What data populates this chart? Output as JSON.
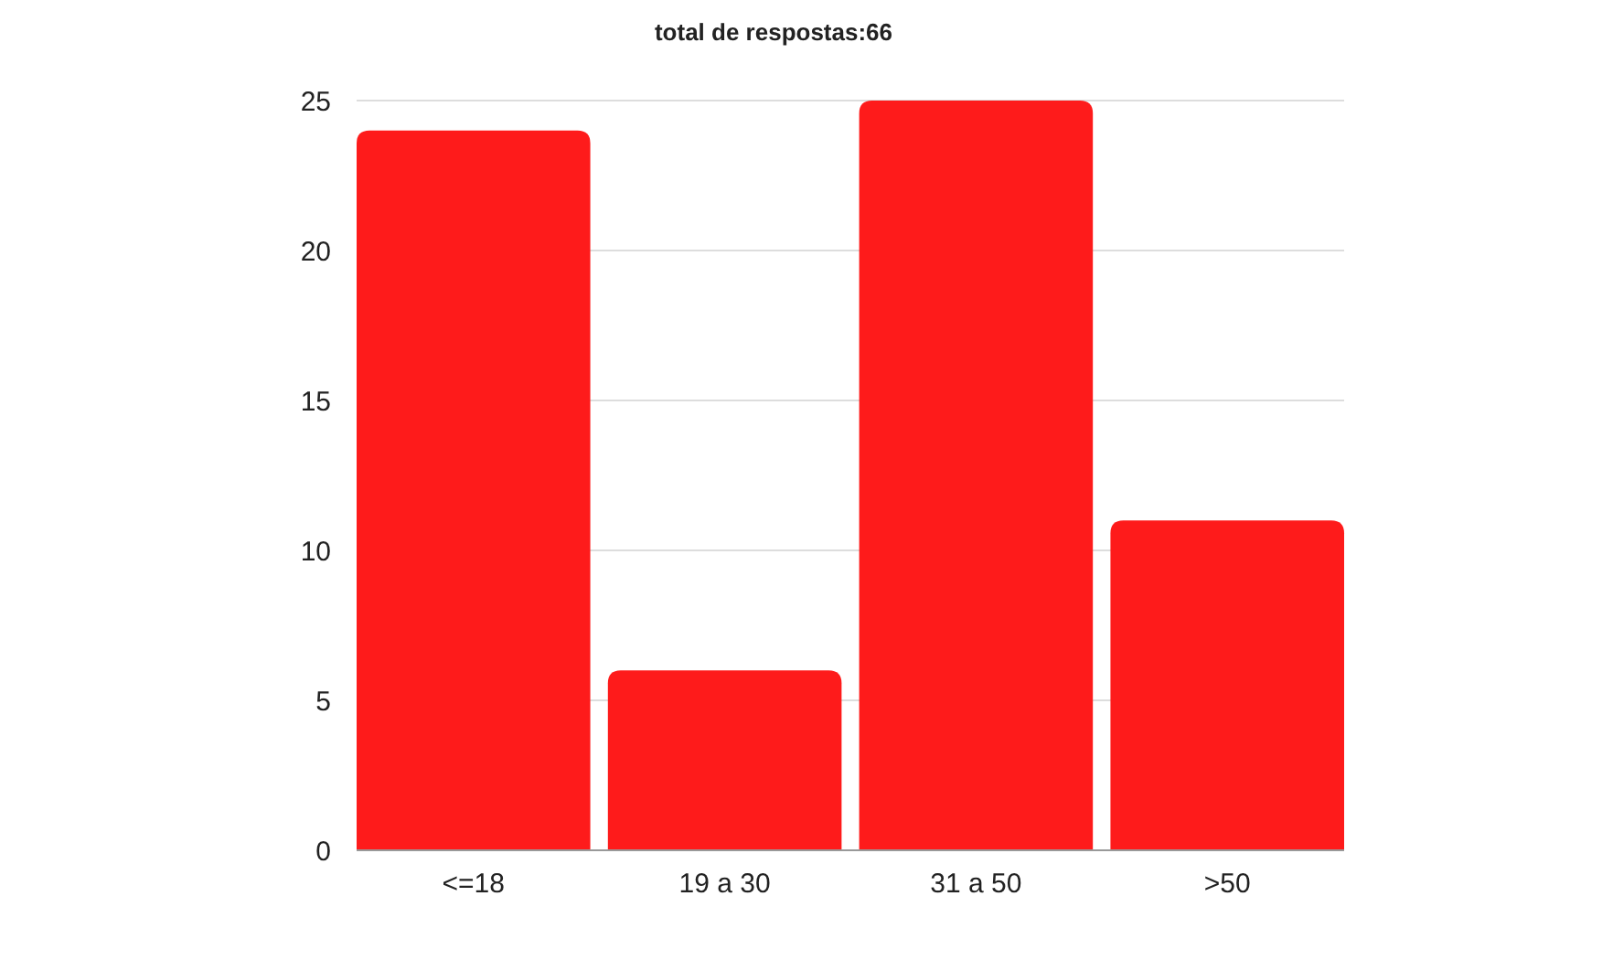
{
  "chart_data": {
    "type": "bar",
    "title": "total de respostas:66",
    "categories": [
      "<=18",
      "19 a 30",
      "31 a 50",
      ">50"
    ],
    "values": [
      24,
      6,
      25,
      11
    ],
    "color": "#fe1b1b",
    "ylim": [
      0,
      25
    ],
    "yticks": [
      0,
      5,
      10,
      15,
      20,
      25
    ],
    "grid": "y"
  }
}
